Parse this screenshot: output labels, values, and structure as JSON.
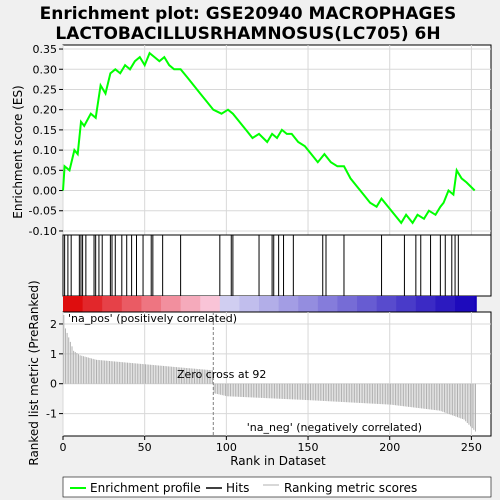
{
  "title_line1": "Enrichment plot: GSE20940 MACROPHAGES",
  "title_line2": "LACTOBACILLUSRHAMNOSUS(LC705) 6H",
  "colors": {
    "enrichment_line": "#00ff00",
    "pos_label": "#cc0000",
    "neg_label": "#0000cc",
    "metric_bars": "#b0b0b0",
    "zero_cross_line": "#808080"
  },
  "chart_data": [
    {
      "type": "line",
      "name": "enrichment-profile",
      "ylabel": "Enrichment score (ES)",
      "xlim": [
        0,
        262
      ],
      "ylim": [
        -0.11,
        0.36
      ],
      "y_ticks": [
        "-0.10",
        "-0.05",
        "0.00",
        "0.05",
        "0.10",
        "0.15",
        "0.20",
        "0.25",
        "0.30",
        "0.35"
      ],
      "x": [
        0,
        1,
        4,
        7,
        9,
        11,
        13,
        17,
        20,
        23,
        26,
        29,
        32,
        35,
        38,
        41,
        44,
        47,
        50,
        53,
        56,
        59,
        62,
        65,
        68,
        72,
        76,
        80,
        84,
        88,
        92,
        97,
        101,
        104,
        108,
        112,
        116,
        120,
        125,
        128,
        131,
        134,
        137,
        140,
        144,
        148,
        152,
        156,
        160,
        164,
        168,
        172,
        176,
        180,
        184,
        188,
        192,
        195,
        199,
        203,
        207,
        210,
        214,
        217,
        221,
        224,
        228,
        231,
        233,
        236,
        239,
        241,
        244,
        247,
        252
      ],
      "y": [
        0.0,
        0.06,
        0.05,
        0.1,
        0.09,
        0.17,
        0.16,
        0.19,
        0.18,
        0.26,
        0.24,
        0.29,
        0.3,
        0.29,
        0.31,
        0.3,
        0.32,
        0.33,
        0.31,
        0.34,
        0.33,
        0.32,
        0.33,
        0.31,
        0.3,
        0.3,
        0.28,
        0.26,
        0.24,
        0.22,
        0.2,
        0.19,
        0.2,
        0.19,
        0.17,
        0.15,
        0.13,
        0.14,
        0.12,
        0.14,
        0.13,
        0.15,
        0.14,
        0.14,
        0.12,
        0.11,
        0.09,
        0.07,
        0.09,
        0.07,
        0.06,
        0.06,
        0.03,
        0.01,
        -0.01,
        -0.03,
        -0.04,
        -0.02,
        -0.04,
        -0.06,
        -0.08,
        -0.06,
        -0.08,
        -0.06,
        -0.07,
        -0.05,
        -0.06,
        -0.04,
        -0.03,
        0.0,
        -0.01,
        0.05,
        0.03,
        0.02,
        0.0
      ]
    },
    {
      "type": "scatter",
      "name": "hits",
      "x": [
        1,
        3,
        5,
        10,
        11,
        12,
        14,
        19,
        20,
        22,
        24,
        29,
        30,
        32,
        36,
        39,
        42,
        45,
        49,
        54,
        55,
        61,
        72,
        96,
        103,
        104,
        120,
        128,
        129,
        132,
        135,
        141,
        159,
        161,
        172,
        195,
        209,
        216,
        219,
        225,
        231,
        234,
        238,
        240,
        242
      ]
    },
    {
      "type": "bar",
      "name": "ranking-metric-scores",
      "ylabel": "Ranked list metric (PreRanked)",
      "xlabel": "Rank in Dataset",
      "xlim": [
        0,
        262
      ],
      "ylim": [
        -1.75,
        2.4
      ],
      "y_ticks": [
        "-1",
        "0",
        "1",
        "2"
      ],
      "x_ticks": [
        "0",
        "50",
        "100",
        "150",
        "200",
        "250"
      ],
      "n_genes": 253,
      "zero_cross": 92,
      "zero_cross_label": "Zero cross at 92",
      "pos_label": "'na_pos' (positively correlated)",
      "neg_label": "'na_neg' (negatively correlated)",
      "anchors_x": [
        0,
        1,
        3,
        6,
        10,
        20,
        40,
        70,
        91,
        92,
        100,
        150,
        200,
        230,
        245,
        252
      ],
      "anchors_y": [
        2.3,
        1.85,
        1.55,
        1.1,
        0.95,
        0.8,
        0.7,
        0.55,
        0.45,
        -0.32,
        -0.42,
        -0.55,
        -0.7,
        -0.9,
        -1.2,
        -1.6
      ]
    }
  ],
  "legend": [
    {
      "label": "Enrichment profile",
      "symbol": "green-line"
    },
    {
      "label": "Hits",
      "symbol": "black-line"
    },
    {
      "label": "Ranking metric scores",
      "symbol": "gray-line"
    }
  ]
}
